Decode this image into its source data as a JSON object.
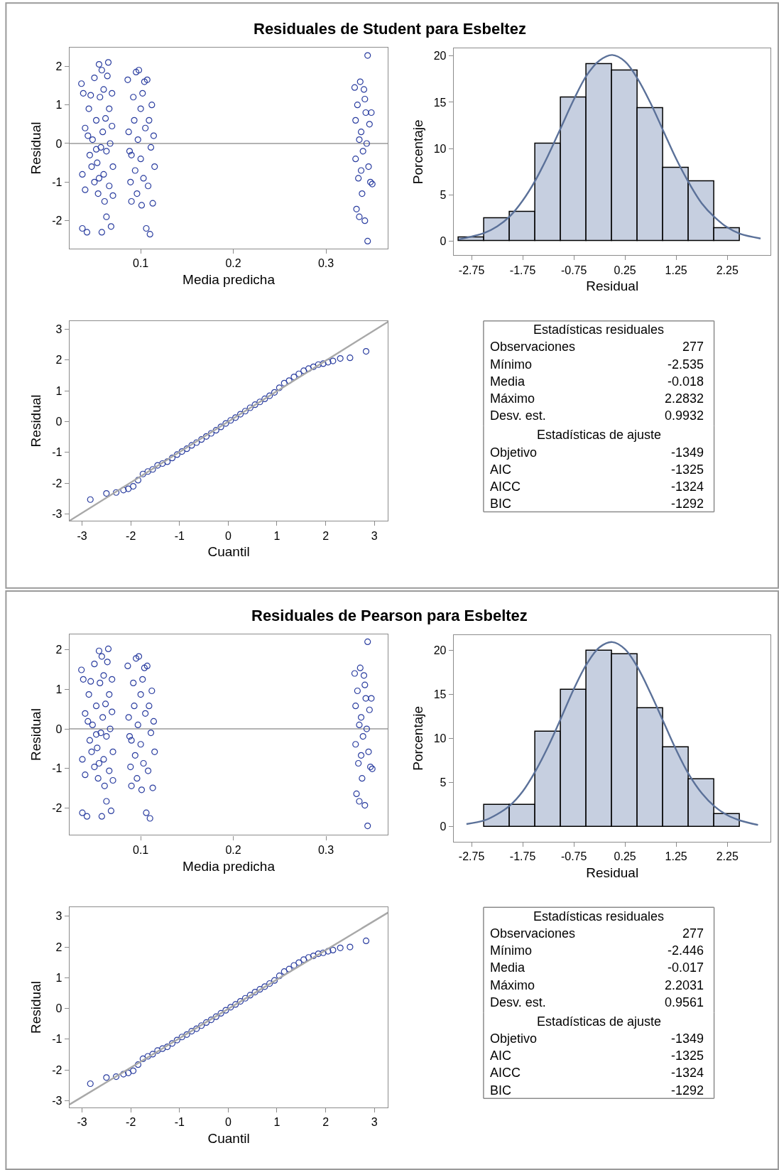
{
  "chart_data": [
    {
      "type": "scatter",
      "title": "Residuales de Student para Esbeltez",
      "xlabel": "Media predicha",
      "ylabel": "Residual",
      "xlim": [
        0.023,
        0.367
      ],
      "ylim": [
        -2.72,
        2.48
      ],
      "xticks": [
        0.1,
        0.2,
        0.3
      ],
      "yticks": [
        -2,
        -1,
        0,
        1,
        2
      ],
      "marker": "circle",
      "color": "#2b3ea0",
      "grid": false,
      "ref_lines": [
        {
          "axis": "y",
          "value": 0,
          "color": "#9a9a9a"
        }
      ],
      "x": [
        0.036,
        0.038,
        0.04,
        0.037,
        0.04,
        0.037,
        0.042,
        0.044,
        0.045,
        0.046,
        0.048,
        0.05,
        0.05,
        0.052,
        0.053,
        0.054,
        0.055,
        0.056,
        0.057,
        0.058,
        0.059,
        0.06,
        0.06,
        0.061,
        0.062,
        0.063,
        0.064,
        0.065,
        0.066,
        0.067,
        0.068,
        0.069,
        0.07,
        0.07,
        0.066,
        0.055,
        0.047,
        0.043,
        0.058,
        0.063,
        0.052,
        0.069,
        0.086,
        0.087,
        0.088,
        0.089,
        0.09,
        0.092,
        0.093,
        0.094,
        0.095,
        0.096,
        0.097,
        0.098,
        0.1,
        0.1,
        0.101,
        0.102,
        0.103,
        0.105,
        0.106,
        0.107,
        0.108,
        0.109,
        0.11,
        0.111,
        0.112,
        0.113,
        0.114,
        0.115,
        0.09,
        0.104,
        0.331,
        0.332,
        0.332,
        0.333,
        0.334,
        0.335,
        0.336,
        0.337,
        0.338,
        0.339,
        0.34,
        0.341,
        0.342,
        0.343,
        0.344,
        0.345,
        0.345,
        0.346,
        0.347,
        0.348,
        0.349,
        0.35,
        0.336,
        0.342,
        0.338
      ],
      "values": [
        1.55,
        1.3,
        0.4,
        -0.8,
        -1.2,
        -2.2,
        -2.3,
        0.9,
        -0.3,
        1.25,
        0.1,
        -1.0,
        1.7,
        0.6,
        -0.5,
        -1.3,
        2.05,
        1.2,
        -0.1,
        -2.3,
        0.3,
        1.4,
        -0.8,
        -1.5,
        0.65,
        -0.2,
        1.75,
        2.1,
        -1.1,
        0.0,
        -2.15,
        1.3,
        -0.6,
        -1.35,
        0.9,
        -0.9,
        -0.6,
        0.2,
        1.9,
        -1.9,
        -0.15,
        0.45,
        1.65,
        0.3,
        -0.2,
        -1.0,
        -1.5,
        1.2,
        0.6,
        -0.7,
        1.85,
        -1.3,
        0.1,
        1.9,
        -0.4,
        0.9,
        -1.6,
        1.3,
        -0.9,
        0.4,
        -2.2,
        1.65,
        -1.1,
        0.6,
        -2.35,
        -0.1,
        1.0,
        -1.55,
        0.2,
        -0.6,
        -0.3,
        1.6,
        1.45,
        0.6,
        -0.4,
        -1.7,
        1.0,
        -0.9,
        -1.9,
        1.6,
        0.3,
        -1.3,
        -0.2,
        1.4,
        -2.0,
        0.8,
        0.0,
        2.28,
        -2.53,
        -0.6,
        0.5,
        -1.0,
        0.8,
        -1.05,
        0.1,
        1.15,
        -0.7
      ]
    },
    {
      "type": "histogram",
      "xlabel": "Residual",
      "ylabel": "Porcentaje",
      "xlim": [
        -3.1,
        3.1
      ],
      "ylim": [
        -1.5,
        20.8
      ],
      "xticks": [
        -2.75,
        -1.75,
        -0.75,
        0.25,
        1.25,
        2.25
      ],
      "yticks": [
        0,
        5,
        10,
        15,
        20
      ],
      "color": "#c6cfe0",
      "grid": false,
      "bins": [
        -3,
        -2.5,
        -2,
        -1.5,
        -1,
        -0.5,
        0,
        0.5,
        1,
        1.5,
        2,
        2.5
      ],
      "values": [
        0.4,
        2.5,
        3.2,
        10.5,
        15.5,
        19.1,
        18.4,
        14.4,
        7.9,
        6.5,
        1.4
      ],
      "series": [
        {
          "type": "line",
          "color": "#5b7199",
          "x": [
            -3,
            -2.5,
            -2.25,
            -2,
            -1.75,
            -1.5,
            -1.25,
            -1,
            -0.75,
            -0.5,
            -0.25,
            0,
            0.25,
            0.5,
            0.75,
            1,
            1.25,
            1.5,
            1.75,
            2,
            2.25,
            2.5,
            2.9
          ],
          "values": [
            0.2,
            0.9,
            1.6,
            2.7,
            4.4,
            6.6,
            9.3,
            12.3,
            15.3,
            17.9,
            19.5,
            20.1,
            19.4,
            17.5,
            14.9,
            11.9,
            8.9,
            6.3,
            4.1,
            2.6,
            1.5,
            0.8,
            0.3
          ]
        }
      ]
    },
    {
      "type": "scatter",
      "xlabel": "Cuantil",
      "ylabel": "Residual",
      "xlim": [
        -3.26,
        3.28
      ],
      "ylim": [
        -3.22,
        3.27
      ],
      "xticks": [
        -3,
        -2,
        -1,
        0,
        1,
        2,
        3
      ],
      "yticks": [
        -3,
        -2,
        -1,
        0,
        1,
        2,
        3
      ],
      "grid": false,
      "series": [
        {
          "type": "scatter",
          "color": "#2b3ea0",
          "x": [
            -2.83,
            -2.5,
            -2.3,
            -2.15,
            -2.05,
            -1.95,
            -1.85,
            -1.75,
            -1.65,
            -1.55,
            -1.45,
            -1.35,
            -1.25,
            -1.15,
            -1.05,
            -0.95,
            -0.85,
            -0.75,
            -0.65,
            -0.55,
            -0.45,
            -0.35,
            -0.25,
            -0.15,
            -0.05,
            0.05,
            0.15,
            0.25,
            0.35,
            0.45,
            0.55,
            0.65,
            0.75,
            0.85,
            0.95,
            1.05,
            1.15,
            1.25,
            1.35,
            1.45,
            1.55,
            1.65,
            1.75,
            1.85,
            1.95,
            2.05,
            2.15,
            2.3,
            2.5,
            2.83
          ],
          "marker": "circle",
          "values": [
            -2.53,
            -2.33,
            -2.3,
            -2.22,
            -2.18,
            -2.1,
            -1.9,
            -1.7,
            -1.62,
            -1.55,
            -1.42,
            -1.36,
            -1.3,
            -1.18,
            -1.07,
            -0.97,
            -0.88,
            -0.77,
            -0.68,
            -0.58,
            -0.48,
            -0.38,
            -0.28,
            -0.17,
            -0.06,
            0.04,
            0.13,
            0.24,
            0.34,
            0.45,
            0.55,
            0.64,
            0.74,
            0.84,
            0.95,
            1.1,
            1.25,
            1.33,
            1.45,
            1.55,
            1.65,
            1.72,
            1.78,
            1.85,
            1.88,
            1.93,
            1.97,
            2.05,
            2.07,
            2.28
          ]
        },
        {
          "type": "line",
          "color": "#a8a8a8",
          "x": [
            -3.26,
            3.28
          ],
          "values": [
            -3.22,
            3.24
          ]
        }
      ]
    },
    {
      "type": "other",
      "title": "Estadísticas residuales",
      "data_labels": true,
      "categories": [
        "Observaciones",
        "Mínimo",
        "Media",
        "Máximo",
        "Desv. est."
      ],
      "values": [
        277,
        -2.535,
        -0.018,
        2.2832,
        0.9932
      ]
    },
    {
      "type": "other",
      "title": "Estadísticas de ajuste",
      "data_labels": true,
      "categories": [
        "Objetivo",
        "AIC",
        "AICC",
        "BIC"
      ],
      "values": [
        -1349,
        -1325,
        -1324,
        -1292
      ]
    },
    {
      "type": "scatter",
      "title": "Residuales de Pearson para Esbeltez",
      "xlabel": "Media predicha",
      "ylabel": "Residual",
      "xlim": [
        0.023,
        0.367
      ],
      "ylim": [
        -2.68,
        2.39
      ],
      "xticks": [
        0.1,
        0.2,
        0.3
      ],
      "yticks": [
        -2,
        -1,
        0,
        1,
        2
      ],
      "marker": "circle",
      "color": "#2b3ea0",
      "grid": false,
      "ref_lines": [
        {
          "axis": "y",
          "value": 0,
          "color": "#9a9a9a"
        }
      ],
      "x": [
        0.036,
        0.038,
        0.04,
        0.037,
        0.04,
        0.037,
        0.042,
        0.044,
        0.045,
        0.046,
        0.048,
        0.05,
        0.05,
        0.052,
        0.053,
        0.054,
        0.055,
        0.056,
        0.057,
        0.058,
        0.059,
        0.06,
        0.06,
        0.061,
        0.062,
        0.063,
        0.064,
        0.065,
        0.066,
        0.067,
        0.068,
        0.069,
        0.07,
        0.07,
        0.066,
        0.055,
        0.047,
        0.043,
        0.058,
        0.063,
        0.052,
        0.069,
        0.086,
        0.087,
        0.088,
        0.089,
        0.09,
        0.092,
        0.093,
        0.094,
        0.095,
        0.096,
        0.097,
        0.098,
        0.1,
        0.1,
        0.101,
        0.102,
        0.103,
        0.105,
        0.106,
        0.107,
        0.108,
        0.109,
        0.11,
        0.111,
        0.112,
        0.113,
        0.114,
        0.115,
        0.09,
        0.104,
        0.331,
        0.332,
        0.332,
        0.333,
        0.334,
        0.335,
        0.336,
        0.337,
        0.338,
        0.339,
        0.34,
        0.341,
        0.342,
        0.343,
        0.344,
        0.345,
        0.345,
        0.346,
        0.347,
        0.348,
        0.349,
        0.35,
        0.336,
        0.342,
        0.338
      ],
      "values": [
        1.49,
        1.25,
        0.39,
        -0.77,
        -1.16,
        -2.12,
        -2.21,
        0.87,
        -0.29,
        1.2,
        0.1,
        -0.96,
        1.64,
        0.58,
        -0.48,
        -1.25,
        1.97,
        1.16,
        -0.1,
        -2.21,
        0.29,
        1.35,
        -0.77,
        -1.44,
        0.63,
        -0.19,
        1.69,
        2.02,
        -1.06,
        0.0,
        -2.07,
        1.25,
        -0.58,
        -1.3,
        0.87,
        -0.87,
        -0.58,
        0.19,
        1.83,
        -1.83,
        -0.14,
        0.43,
        1.59,
        0.29,
        -0.19,
        -0.96,
        -1.44,
        1.16,
        0.58,
        -0.67,
        1.78,
        -1.25,
        0.1,
        1.83,
        -0.39,
        0.87,
        -1.54,
        1.25,
        -0.87,
        0.39,
        -2.12,
        1.59,
        -1.06,
        0.58,
        -2.26,
        -0.1,
        0.96,
        -1.49,
        0.19,
        -0.58,
        -0.29,
        1.54,
        1.4,
        0.58,
        -0.39,
        -1.64,
        0.96,
        -0.87,
        -1.83,
        1.54,
        0.29,
        -1.25,
        -0.19,
        1.35,
        -1.93,
        0.77,
        0.0,
        2.2,
        -2.45,
        -0.58,
        0.48,
        -0.96,
        0.77,
        -1.01,
        0.1,
        1.11,
        -0.67
      ]
    },
    {
      "type": "histogram",
      "xlabel": "Residual",
      "ylabel": "Porcentaje",
      "xlim": [
        -3.1,
        3.1
      ],
      "ylim": [
        -1.7,
        21.7
      ],
      "xticks": [
        -2.75,
        -1.75,
        -0.75,
        0.25,
        1.25,
        2.25
      ],
      "yticks": [
        0,
        5,
        10,
        15,
        20
      ],
      "color": "#c6cfe0",
      "grid": false,
      "bins": [
        -2.5,
        -2,
        -1.5,
        -1,
        -0.5,
        0,
        0.5,
        1,
        1.5,
        2,
        2.5
      ],
      "values": [
        2.5,
        2.5,
        10.8,
        15.5,
        19.9,
        19.5,
        13.4,
        9.0,
        5.4,
        1.4
      ],
      "series": [
        {
          "type": "line",
          "color": "#5b7199",
          "x": [
            -2.85,
            -2.5,
            -2.25,
            -2,
            -1.75,
            -1.5,
            -1.25,
            -1,
            -0.75,
            -0.5,
            -0.25,
            0,
            0.25,
            0.5,
            0.75,
            1,
            1.25,
            1.5,
            1.75,
            2,
            2.25,
            2.5,
            2.85
          ],
          "values": [
            0.3,
            0.7,
            1.4,
            2.4,
            4.0,
            6.3,
            9.1,
            12.3,
            15.6,
            18.4,
            20.3,
            20.9,
            20.1,
            18.0,
            15.1,
            11.9,
            8.7,
            5.9,
            3.8,
            2.3,
            1.3,
            0.7,
            0.2
          ]
        }
      ]
    },
    {
      "type": "scatter",
      "xlabel": "Cuantil",
      "ylabel": "Residual",
      "xlim": [
        -3.26,
        3.28
      ],
      "ylim": [
        -3.22,
        3.29
      ],
      "xticks": [
        -3,
        -2,
        -1,
        0,
        1,
        2,
        3
      ],
      "yticks": [
        -3,
        -2,
        -1,
        0,
        1,
        2,
        3
      ],
      "grid": false,
      "series": [
        {
          "type": "scatter",
          "color": "#2b3ea0",
          "x": [
            -2.83,
            -2.5,
            -2.3,
            -2.15,
            -2.05,
            -1.95,
            -1.85,
            -1.75,
            -1.65,
            -1.55,
            -1.45,
            -1.35,
            -1.25,
            -1.15,
            -1.05,
            -0.95,
            -0.85,
            -0.75,
            -0.65,
            -0.55,
            -0.45,
            -0.35,
            -0.25,
            -0.15,
            -0.05,
            0.05,
            0.15,
            0.25,
            0.35,
            0.45,
            0.55,
            0.65,
            0.75,
            0.85,
            0.95,
            1.05,
            1.15,
            1.25,
            1.35,
            1.45,
            1.55,
            1.65,
            1.75,
            1.85,
            1.95,
            2.05,
            2.15,
            2.3,
            2.5,
            2.83
          ],
          "marker": "circle",
          "values": [
            -2.45,
            -2.25,
            -2.22,
            -2.14,
            -2.1,
            -2.03,
            -1.83,
            -1.64,
            -1.56,
            -1.49,
            -1.37,
            -1.31,
            -1.25,
            -1.14,
            -1.03,
            -0.93,
            -0.85,
            -0.74,
            -0.66,
            -0.56,
            -0.46,
            -0.37,
            -0.27,
            -0.16,
            -0.06,
            0.04,
            0.13,
            0.23,
            0.33,
            0.43,
            0.53,
            0.62,
            0.71,
            0.81,
            0.91,
            1.06,
            1.2,
            1.28,
            1.4,
            1.49,
            1.59,
            1.66,
            1.71,
            1.78,
            1.81,
            1.86,
            1.9,
            1.97,
            2.0,
            2.2
          ]
        },
        {
          "type": "line",
          "color": "#a8a8a8",
          "x": [
            -3.26,
            3.28
          ],
          "values": [
            -3.13,
            3.12
          ]
        }
      ]
    },
    {
      "type": "other",
      "title": "Estadísticas residuales",
      "data_labels": true,
      "categories": [
        "Observaciones",
        "Mínimo",
        "Media",
        "Máximo",
        "Desv. est."
      ],
      "values": [
        277,
        -2.446,
        -0.017,
        2.2031,
        0.9561
      ]
    },
    {
      "type": "other",
      "title": "Estadísticas de ajuste",
      "data_labels": true,
      "categories": [
        "Objetivo",
        "AIC",
        "AICC",
        "BIC"
      ],
      "values": [
        -1349,
        -1325,
        -1324,
        -1292
      ]
    }
  ]
}
